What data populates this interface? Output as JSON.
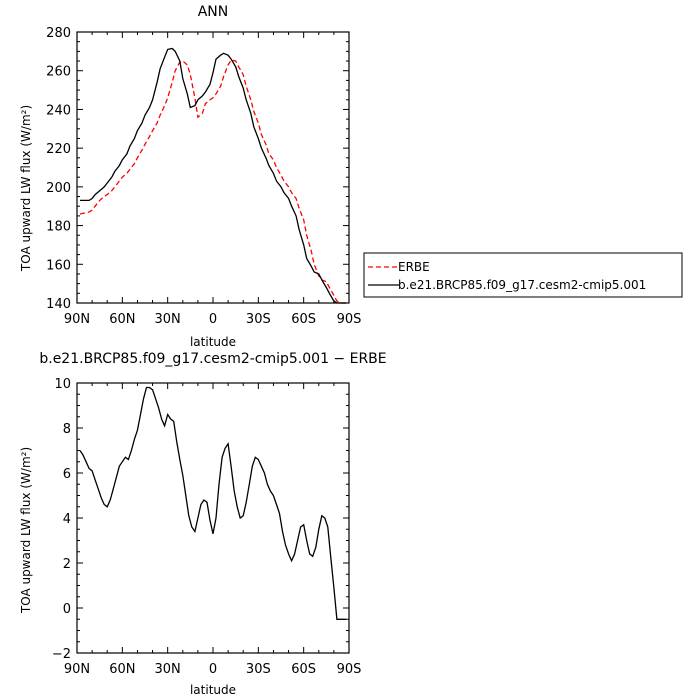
{
  "chart_data": [
    {
      "type": "line",
      "title": "ANN",
      "xlabel": "latitude",
      "ylabel": "TOA upward LW flux (W/m²)",
      "xlim": [
        -90,
        90
      ],
      "ylim": [
        140,
        280
      ],
      "x_ticks": [
        -90,
        -60,
        -30,
        0,
        30,
        60,
        90
      ],
      "x_tick_labels": [
        "90N",
        "60N",
        "30N",
        "0",
        "30S",
        "60S",
        "90S"
      ],
      "y_ticks": [
        140,
        160,
        180,
        200,
        220,
        240,
        260,
        280
      ],
      "y_tick_labels": [
        "140",
        "160",
        "180",
        "200",
        "220",
        "240",
        "260",
        "280"
      ],
      "legend_position": "outside-right",
      "series": [
        {
          "name": "ERBE",
          "color": "#ff0000",
          "dash": "dashed",
          "x": [
            -88,
            -85,
            -82,
            -80,
            -78,
            -75,
            -72,
            -70,
            -67,
            -65,
            -62,
            -60,
            -57,
            -55,
            -52,
            -50,
            -47,
            -45,
            -42,
            -40,
            -37,
            -35,
            -32,
            -30,
            -27,
            -25,
            -22,
            -20,
            -17,
            -15,
            -12,
            -10,
            -7,
            -5,
            -2,
            0,
            2,
            5,
            7,
            10,
            12,
            15,
            17,
            20,
            22,
            25,
            27,
            30,
            32,
            35,
            37,
            40,
            42,
            45,
            47,
            50,
            52,
            55,
            57,
            60,
            62,
            65,
            67,
            70,
            72,
            75,
            77,
            80,
            82,
            85,
            87,
            88
          ],
          "y": [
            186,
            186.5,
            187,
            188,
            190,
            193,
            195,
            196,
            198,
            200,
            203,
            205,
            207,
            209,
            212,
            215,
            219,
            222,
            226,
            229,
            233,
            237,
            242,
            246,
            254,
            260,
            264.5,
            265,
            263,
            258,
            246,
            236,
            238,
            243,
            245,
            246,
            248,
            252,
            257,
            263,
            265.5,
            265,
            262,
            258,
            252,
            245,
            239,
            233,
            227,
            222,
            217,
            214,
            210,
            206,
            203,
            200,
            197,
            194,
            189,
            183,
            175,
            167,
            160,
            154,
            152,
            151,
            148,
            144,
            141,
            140,
            140,
            140
          ]
        },
        {
          "name": "b.e21.BRCP85.f09_g17.cesm2-cmip5.001",
          "color": "#000000",
          "dash": "solid",
          "x": [
            -88,
            -85,
            -82,
            -80,
            -78,
            -75,
            -72,
            -70,
            -67,
            -65,
            -62,
            -60,
            -57,
            -55,
            -52,
            -50,
            -47,
            -45,
            -42,
            -40,
            -37,
            -35,
            -32,
            -30,
            -27,
            -25,
            -22,
            -20,
            -17,
            -15,
            -12,
            -10,
            -7,
            -5,
            -2,
            0,
            2,
            5,
            7,
            10,
            12,
            15,
            17,
            20,
            22,
            25,
            27,
            30,
            32,
            35,
            37,
            40,
            42,
            45,
            47,
            50,
            52,
            55,
            57,
            60,
            62,
            65,
            67,
            70,
            72,
            75,
            77,
            80,
            82,
            85,
            87,
            88
          ],
          "y": [
            193,
            193,
            193,
            194,
            196,
            198,
            200,
            202,
            205,
            208,
            211,
            214,
            217,
            221,
            225,
            229,
            233,
            237,
            241,
            245,
            254,
            261,
            267,
            271,
            271.5,
            270,
            265,
            256,
            248,
            241,
            242,
            245,
            247,
            249,
            253,
            259,
            266,
            268,
            269,
            268,
            266,
            262,
            257,
            251,
            245,
            238,
            231,
            225,
            220,
            215,
            211,
            207,
            203,
            200,
            197,
            194,
            190,
            185,
            178,
            170,
            163,
            159,
            156,
            155,
            152,
            148,
            145,
            141,
            140,
            140,
            140,
            140
          ]
        }
      ]
    },
    {
      "type": "line",
      "title": "b.e21.BRCP85.f09_g17.cesm2-cmip5.001 − ERBE",
      "xlabel": "latitude",
      "ylabel": "TOA upward LW flux (W/m²)",
      "xlim": [
        -90,
        90
      ],
      "ylim": [
        -2,
        10
      ],
      "x_ticks": [
        -90,
        -60,
        -30,
        0,
        30,
        60,
        90
      ],
      "x_tick_labels": [
        "90N",
        "60N",
        "30N",
        "0",
        "30S",
        "60S",
        "90S"
      ],
      "y_ticks": [
        -2,
        0,
        2,
        4,
        6,
        8,
        10
      ],
      "y_tick_labels": [
        "−2",
        "0",
        "2",
        "4",
        "6",
        "8",
        "10"
      ],
      "series": [
        {
          "color": "#000000",
          "dash": "solid",
          "x": [
            -88,
            -86,
            -84,
            -82,
            -80,
            -78,
            -76,
            -74,
            -72,
            -70,
            -68,
            -66,
            -64,
            -62,
            -60,
            -58,
            -56,
            -54,
            -52,
            -50,
            -48,
            -46,
            -44,
            -42,
            -40,
            -38,
            -36,
            -34,
            -32,
            -30,
            -28,
            -26,
            -24,
            -22,
            -20,
            -18,
            -16,
            -14,
            -12,
            -10,
            -8,
            -6,
            -4,
            -2,
            0,
            2,
            4,
            6,
            8,
            10,
            12,
            14,
            16,
            18,
            20,
            22,
            24,
            26,
            28,
            30,
            32,
            34,
            36,
            38,
            40,
            42,
            44,
            46,
            48,
            50,
            52,
            54,
            56,
            58,
            60,
            62,
            64,
            66,
            68,
            70,
            72,
            74,
            76,
            78,
            80,
            82,
            84,
            86,
            88
          ],
          "y": [
            7.0,
            6.8,
            6.5,
            6.2,
            6.1,
            5.7,
            5.3,
            4.9,
            4.6,
            4.5,
            4.8,
            5.3,
            5.8,
            6.3,
            6.5,
            6.7,
            6.6,
            7.0,
            7.5,
            7.9,
            8.6,
            9.3,
            9.8,
            9.8,
            9.7,
            9.3,
            8.9,
            8.4,
            8.1,
            8.6,
            8.4,
            8.3,
            7.4,
            6.6,
            5.9,
            5.0,
            4.1,
            3.6,
            3.4,
            4.0,
            4.6,
            4.8,
            4.7,
            3.9,
            3.3,
            4.0,
            5.5,
            6.7,
            7.1,
            7.3,
            6.3,
            5.2,
            4.5,
            4.0,
            4.1,
            4.7,
            5.5,
            6.3,
            6.7,
            6.6,
            6.3,
            6.0,
            5.5,
            5.2,
            5.0,
            4.6,
            4.2,
            3.4,
            2.8,
            2.4,
            2.1,
            2.4,
            3.0,
            3.6,
            3.7,
            3.0,
            2.4,
            2.3,
            2.7,
            3.5,
            4.1,
            4.0,
            3.6,
            2.2,
            0.9,
            -0.5,
            -0.5,
            -0.5,
            -0.5
          ]
        }
      ]
    }
  ]
}
